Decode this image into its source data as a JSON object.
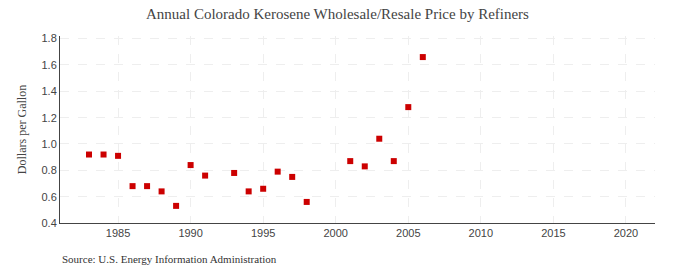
{
  "chart_data": {
    "type": "scatter",
    "title": "Annual Colorado Kerosene Wholesale/Resale Price by Refiners",
    "y_label": "Dollars per Gallon",
    "annotations": [
      "Source: U.S. Energy Information Administration"
    ],
    "x": [
      1983,
      1984,
      1985,
      1986,
      1987,
      1988,
      1989,
      1990,
      1991,
      1993,
      1994,
      1995,
      1996,
      1997,
      1998,
      2001,
      2002,
      2003,
      2004,
      2005,
      2006
    ],
    "values": [
      0.92,
      0.92,
      0.91,
      0.68,
      0.68,
      0.64,
      0.53,
      0.84,
      0.76,
      0.78,
      0.64,
      0.66,
      0.79,
      0.75,
      0.56,
      0.87,
      0.83,
      1.04,
      0.87,
      1.28,
      1.66
    ],
    "color": "#cc0000",
    "marker": "square",
    "xlim": [
      1981,
      2022
    ],
    "xticks": [
      1985,
      1990,
      1995,
      2000,
      2005,
      2010,
      2015,
      2020
    ],
    "ylim": [
      0.4,
      1.82
    ],
    "yticks": [
      0.4,
      0.6,
      0.8,
      {
        "value": 1.0,
        "label": "1.0"
      },
      1.2,
      1.4,
      1.6,
      1.8
    ],
    "grid": true
  }
}
